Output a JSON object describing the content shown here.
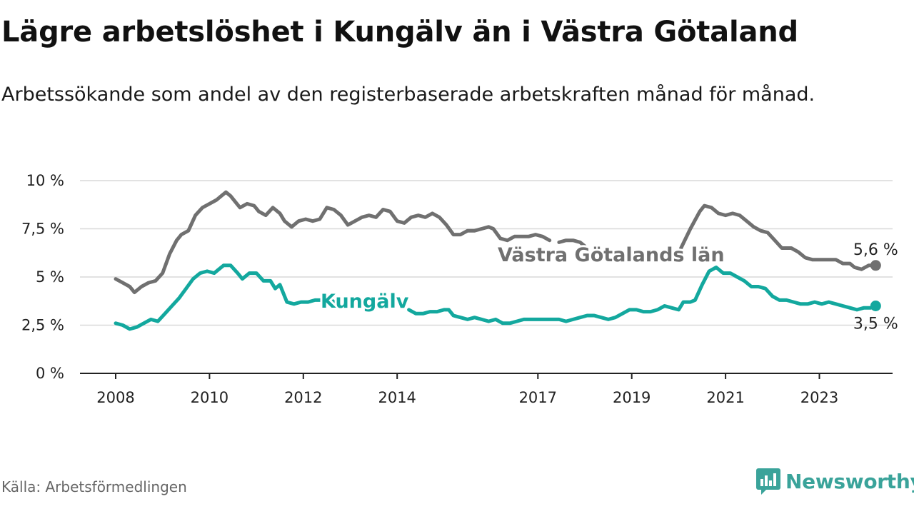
{
  "title": "Lägre arbetslöshet i Kungälv än i Västra Götaland",
  "subtitle": "Arbetssökande som andel av den registerbaserade arbetskraften månad för månad.",
  "source": "Källa: Arbetsförmedlingen",
  "brand": {
    "name": "Newsworthy",
    "icon": "newsworthy-logo-icon",
    "color": "#3aa39a"
  },
  "chart_data": {
    "type": "line",
    "title": "Lägre arbetslöshet i Kungälv än i Västra Götaland",
    "xlabel": "",
    "ylabel": "",
    "xlim": [
      2007.6,
      2024.4
    ],
    "ylim": [
      0,
      10
    ],
    "grid": true,
    "y_ticks": [
      {
        "value": 0,
        "label": "0 %"
      },
      {
        "value": 2.5,
        "label": "2,5 %"
      },
      {
        "value": 5,
        "label": "5 %"
      },
      {
        "value": 7.5,
        "label": "7,5 %"
      },
      {
        "value": 10,
        "label": "10 %"
      }
    ],
    "x_ticks": [
      {
        "value": 2008,
        "label": "2008"
      },
      {
        "value": 2010,
        "label": "2010"
      },
      {
        "value": 2012,
        "label": "2012"
      },
      {
        "value": 2014,
        "label": "2014"
      },
      {
        "value": 2017,
        "label": "2017"
      },
      {
        "value": 2019,
        "label": "2019"
      },
      {
        "value": 2021,
        "label": "2021"
      },
      {
        "value": 2023,
        "label": "2023"
      }
    ],
    "series": [
      {
        "name": "Västra Götalands län",
        "color": "#707070",
        "end_label": "5,6 %",
        "points": [
          [
            2008.0,
            4.9
          ],
          [
            2008.15,
            4.7
          ],
          [
            2008.3,
            4.5
          ],
          [
            2008.4,
            4.2
          ],
          [
            2008.55,
            4.5
          ],
          [
            2008.7,
            4.7
          ],
          [
            2008.85,
            4.8
          ],
          [
            2009.0,
            5.2
          ],
          [
            2009.15,
            6.2
          ],
          [
            2009.3,
            6.9
          ],
          [
            2009.4,
            7.2
          ],
          [
            2009.55,
            7.4
          ],
          [
            2009.7,
            8.2
          ],
          [
            2009.85,
            8.6
          ],
          [
            2010.0,
            8.8
          ],
          [
            2010.15,
            9.0
          ],
          [
            2010.25,
            9.2
          ],
          [
            2010.35,
            9.4
          ],
          [
            2010.45,
            9.2
          ],
          [
            2010.55,
            8.9
          ],
          [
            2010.65,
            8.6
          ],
          [
            2010.8,
            8.8
          ],
          [
            2010.95,
            8.7
          ],
          [
            2011.05,
            8.4
          ],
          [
            2011.2,
            8.2
          ],
          [
            2011.35,
            8.6
          ],
          [
            2011.5,
            8.3
          ],
          [
            2011.6,
            7.9
          ],
          [
            2011.75,
            7.6
          ],
          [
            2011.9,
            7.9
          ],
          [
            2012.05,
            8.0
          ],
          [
            2012.2,
            7.9
          ],
          [
            2012.35,
            8.0
          ],
          [
            2012.5,
            8.6
          ],
          [
            2012.65,
            8.5
          ],
          [
            2012.8,
            8.2
          ],
          [
            2012.95,
            7.7
          ],
          [
            2013.1,
            7.9
          ],
          [
            2013.25,
            8.1
          ],
          [
            2013.4,
            8.2
          ],
          [
            2013.55,
            8.1
          ],
          [
            2013.7,
            8.5
          ],
          [
            2013.85,
            8.4
          ],
          [
            2014.0,
            7.9
          ],
          [
            2014.15,
            7.8
          ],
          [
            2014.3,
            8.1
          ],
          [
            2014.45,
            8.2
          ],
          [
            2014.6,
            8.1
          ],
          [
            2014.75,
            8.3
          ],
          [
            2014.9,
            8.1
          ],
          [
            2015.05,
            7.7
          ],
          [
            2015.2,
            7.2
          ],
          [
            2015.35,
            7.2
          ],
          [
            2015.5,
            7.4
          ],
          [
            2015.65,
            7.4
          ],
          [
            2015.8,
            7.5
          ],
          [
            2015.95,
            7.6
          ],
          [
            2016.05,
            7.5
          ],
          [
            2016.2,
            7.0
          ],
          [
            2016.35,
            6.9
          ],
          [
            2016.5,
            7.1
          ],
          [
            2016.65,
            7.1
          ],
          [
            2016.8,
            7.1
          ],
          [
            2016.95,
            7.2
          ],
          [
            2017.1,
            7.1
          ],
          [
            2017.25,
            6.9
          ]
        ],
        "break_after": [
          2017.25
        ],
        "points_b": [
          [
            2017.45,
            6.8
          ],
          [
            2017.6,
            6.9
          ],
          [
            2017.75,
            6.9
          ],
          [
            2017.9,
            6.8
          ],
          [
            2018.0,
            6.6
          ]
        ],
        "points_c": [
          [
            2020.05,
            6.5
          ],
          [
            2020.25,
            7.5
          ],
          [
            2020.45,
            8.4
          ],
          [
            2020.55,
            8.7
          ],
          [
            2020.7,
            8.6
          ],
          [
            2020.85,
            8.3
          ],
          [
            2021.0,
            8.2
          ],
          [
            2021.15,
            8.3
          ],
          [
            2021.3,
            8.2
          ],
          [
            2021.45,
            7.9
          ],
          [
            2021.6,
            7.6
          ],
          [
            2021.75,
            7.4
          ],
          [
            2021.9,
            7.3
          ],
          [
            2022.05,
            6.9
          ],
          [
            2022.2,
            6.5
          ],
          [
            2022.4,
            6.5
          ],
          [
            2022.55,
            6.3
          ],
          [
            2022.7,
            6.0
          ],
          [
            2022.85,
            5.9
          ],
          [
            2023.0,
            5.9
          ],
          [
            2023.2,
            5.9
          ],
          [
            2023.35,
            5.9
          ],
          [
            2023.5,
            5.7
          ],
          [
            2023.65,
            5.7
          ],
          [
            2023.75,
            5.5
          ],
          [
            2023.9,
            5.4
          ],
          [
            2024.05,
            5.6
          ],
          [
            2024.2,
            5.6
          ]
        ]
      },
      {
        "name": "Kungälv",
        "color": "#13a89e",
        "end_label": "3,5 %",
        "points": [
          [
            2008.0,
            2.6
          ],
          [
            2008.15,
            2.5
          ],
          [
            2008.3,
            2.3
          ],
          [
            2008.45,
            2.4
          ],
          [
            2008.6,
            2.6
          ],
          [
            2008.75,
            2.8
          ],
          [
            2008.9,
            2.7
          ],
          [
            2009.05,
            3.1
          ],
          [
            2009.2,
            3.5
          ],
          [
            2009.35,
            3.9
          ],
          [
            2009.5,
            4.4
          ],
          [
            2009.65,
            4.9
          ],
          [
            2009.8,
            5.2
          ],
          [
            2009.95,
            5.3
          ],
          [
            2010.1,
            5.2
          ],
          [
            2010.2,
            5.4
          ],
          [
            2010.3,
            5.6
          ],
          [
            2010.45,
            5.6
          ],
          [
            2010.6,
            5.2
          ],
          [
            2010.7,
            4.9
          ],
          [
            2010.85,
            5.2
          ],
          [
            2011.0,
            5.2
          ],
          [
            2011.15,
            4.8
          ],
          [
            2011.3,
            4.8
          ],
          [
            2011.4,
            4.4
          ],
          [
            2011.5,
            4.6
          ],
          [
            2011.65,
            3.7
          ],
          [
            2011.8,
            3.6
          ],
          [
            2011.95,
            3.7
          ],
          [
            2012.1,
            3.7
          ],
          [
            2012.25,
            3.8
          ],
          [
            2012.4,
            3.8
          ],
          [
            2012.55,
            3.9
          ],
          [
            2012.65,
            3.7
          ],
          [
            2012.75,
            3.5
          ]
        ],
        "points_b": [
          [
            2014.25,
            3.3
          ],
          [
            2014.4,
            3.1
          ],
          [
            2014.55,
            3.1
          ],
          [
            2014.7,
            3.2
          ],
          [
            2014.85,
            3.2
          ],
          [
            2015.0,
            3.3
          ],
          [
            2015.1,
            3.3
          ],
          [
            2015.2,
            3.0
          ],
          [
            2015.35,
            2.9
          ],
          [
            2015.5,
            2.8
          ],
          [
            2015.65,
            2.9
          ],
          [
            2015.8,
            2.8
          ],
          [
            2015.95,
            2.7
          ],
          [
            2016.1,
            2.8
          ],
          [
            2016.25,
            2.6
          ],
          [
            2016.4,
            2.6
          ],
          [
            2016.55,
            2.7
          ],
          [
            2016.7,
            2.8
          ],
          [
            2016.85,
            2.8
          ],
          [
            2017.0,
            2.8
          ],
          [
            2017.15,
            2.8
          ],
          [
            2017.3,
            2.8
          ],
          [
            2017.45,
            2.8
          ],
          [
            2017.6,
            2.7
          ],
          [
            2017.75,
            2.8
          ],
          [
            2017.9,
            2.9
          ],
          [
            2018.05,
            3.0
          ],
          [
            2018.2,
            3.0
          ],
          [
            2018.35,
            2.9
          ],
          [
            2018.5,
            2.8
          ],
          [
            2018.65,
            2.9
          ],
          [
            2018.8,
            3.1
          ],
          [
            2018.95,
            3.3
          ],
          [
            2019.1,
            3.3
          ],
          [
            2019.25,
            3.2
          ],
          [
            2019.4,
            3.2
          ],
          [
            2019.55,
            3.3
          ],
          [
            2019.7,
            3.5
          ],
          [
            2019.85,
            3.4
          ],
          [
            2020.0,
            3.3
          ],
          [
            2020.1,
            3.7
          ],
          [
            2020.25,
            3.7
          ],
          [
            2020.35,
            3.8
          ],
          [
            2020.5,
            4.6
          ],
          [
            2020.65,
            5.3
          ],
          [
            2020.8,
            5.5
          ],
          [
            2020.95,
            5.2
          ],
          [
            2021.1,
            5.2
          ],
          [
            2021.25,
            5.0
          ],
          [
            2021.4,
            4.8
          ],
          [
            2021.55,
            4.5
          ],
          [
            2021.7,
            4.5
          ],
          [
            2021.85,
            4.4
          ],
          [
            2022.0,
            4.0
          ],
          [
            2022.15,
            3.8
          ],
          [
            2022.3,
            3.8
          ],
          [
            2022.45,
            3.7
          ],
          [
            2022.6,
            3.6
          ],
          [
            2022.75,
            3.6
          ],
          [
            2022.9,
            3.7
          ],
          [
            2023.05,
            3.6
          ],
          [
            2023.2,
            3.7
          ],
          [
            2023.35,
            3.6
          ],
          [
            2023.5,
            3.5
          ],
          [
            2023.65,
            3.4
          ],
          [
            2023.8,
            3.3
          ],
          [
            2023.95,
            3.4
          ],
          [
            2024.1,
            3.4
          ],
          [
            2024.2,
            3.5
          ]
        ]
      }
    ],
    "annotations": [
      {
        "text": "Västra Götalands län",
        "series": "Västra Götalands län"
      },
      {
        "text": "Kungälv",
        "series": "Kungälv"
      }
    ]
  }
}
